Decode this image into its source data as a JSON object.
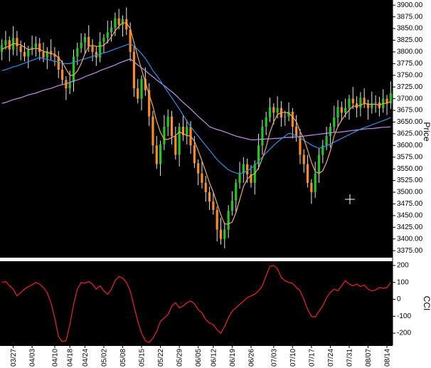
{
  "chart_data": [
    {
      "type": "candlestick",
      "y_label": "Price",
      "categories": [
        null,
        null,
        null,
        "03/27",
        null,
        null,
        null,
        null,
        "04/03",
        null,
        null,
        null,
        null,
        null,
        "04/10",
        null,
        null,
        null,
        "04/18",
        null,
        null,
        null,
        "04/24",
        null,
        null,
        null,
        null,
        "05/02",
        null,
        null,
        null,
        null,
        "05/08",
        null,
        null,
        null,
        null,
        "05/15",
        null,
        null,
        null,
        null,
        "05/22",
        null,
        null,
        null,
        null,
        "05/29",
        null,
        null,
        null,
        null,
        "06/05",
        null,
        null,
        null,
        "06/12",
        null,
        null,
        null,
        null,
        "06/19",
        null,
        null,
        null,
        null,
        "06/26",
        null,
        null,
        null,
        null,
        null,
        "07/03",
        null,
        null,
        null,
        null,
        "07/10",
        null,
        null,
        null,
        null,
        "07/17",
        null,
        null,
        null,
        null,
        "07/24",
        null,
        null,
        null,
        null,
        "07/31",
        null,
        null,
        null,
        null,
        "08/07",
        null,
        null,
        null,
        null,
        "08/14",
        null
      ],
      "open": [
        3800,
        3815,
        3825,
        3805,
        3830,
        3812,
        3800,
        3790,
        3805,
        3810,
        3818,
        3800,
        3788,
        3802,
        3795,
        3790,
        3762,
        3740,
        3722,
        3735,
        3790,
        3808,
        3820,
        3832,
        3812,
        3800,
        3788,
        3822,
        3830,
        3842,
        3852,
        3872,
        3858,
        3870,
        3848,
        3800,
        3722,
        3700,
        3742,
        3718,
        3662,
        3600,
        3560,
        3602,
        3640,
        3662,
        3620,
        3580,
        3640,
        3622,
        3640,
        3600,
        3562,
        3540,
        3520,
        3500,
        3480,
        3462,
        3420,
        3400,
        3420,
        3460,
        3482,
        3520,
        3540,
        3560,
        3538,
        3520,
        3560,
        3600,
        3640,
        3660,
        3682,
        3670,
        3680,
        3660,
        3662,
        3672,
        3640,
        3620,
        3580,
        3560,
        3520,
        3500,
        3540,
        3580,
        3600,
        3620,
        3640,
        3660,
        3682,
        3670,
        3680,
        3700,
        3690,
        3680,
        3702,
        3690,
        3680,
        3690,
        3692,
        3680,
        3700,
        3690
      ],
      "high": [
        3827,
        3845,
        3833,
        3855,
        3845,
        3824,
        3820,
        3813,
        3835,
        3833,
        3830,
        3820,
        3810,
        3827,
        3810,
        3802,
        3782,
        3748,
        3760,
        3805,
        3820,
        3840,
        3840,
        3857,
        3827,
        3812,
        3842,
        3838,
        3867,
        3867,
        3884,
        3892,
        3878,
        3895,
        3863,
        3812,
        3742,
        3750,
        3767,
        3733,
        3674,
        3620,
        3610,
        3665,
        3677,
        3674,
        3640,
        3648,
        3665,
        3655,
        3652,
        3620,
        3570,
        3565,
        3535,
        3512,
        3500,
        3470,
        3445,
        3435,
        3472,
        3502,
        3528,
        3565,
        3575,
        3572,
        3558,
        3568,
        3625,
        3655,
        3672,
        3702,
        3690,
        3705,
        3695,
        3674,
        3692,
        3680,
        3665,
        3635,
        3592,
        3580,
        3528,
        3565,
        3595,
        3612,
        3640,
        3648,
        3685,
        3697,
        3694,
        3700,
        3708,
        3725,
        3705,
        3714,
        3722,
        3698,
        3715,
        3707,
        3704,
        3720,
        3708,
        3737
      ],
      "low": [
        3782,
        3805,
        3780,
        3793,
        3792,
        3782,
        3780,
        3765,
        3793,
        3790,
        3782,
        3778,
        3763,
        3783,
        3770,
        3744,
        3730,
        3697,
        3710,
        3715,
        3772,
        3798,
        3795,
        3800,
        3780,
        3770,
        3778,
        3797,
        3818,
        3822,
        3834,
        3848,
        3833,
        3836,
        3780,
        3704,
        3690,
        3675,
        3706,
        3642,
        3582,
        3550,
        3535,
        3590,
        3620,
        3602,
        3570,
        3555,
        3610,
        3602,
        3582,
        3552,
        3515,
        3508,
        3480,
        3462,
        3452,
        3395,
        3388,
        3380,
        3402,
        3450,
        3457,
        3508,
        3520,
        3520,
        3510,
        3495,
        3548,
        3580,
        3622,
        3650,
        3645,
        3658,
        3640,
        3642,
        3652,
        3615,
        3608,
        3560,
        3542,
        3510,
        3475,
        3488,
        3520,
        3562,
        3590,
        3595,
        3628,
        3640,
        3652,
        3660,
        3655,
        3678,
        3660,
        3662,
        3680,
        3655,
        3668,
        3670,
        3662,
        3670,
        3665,
        3678
      ],
      "close": [
        3815,
        3825,
        3805,
        3830,
        3812,
        3800,
        3790,
        3805,
        3810,
        3818,
        3800,
        3788,
        3802,
        3795,
        3790,
        3762,
        3740,
        3722,
        3735,
        3790,
        3808,
        3820,
        3832,
        3812,
        3800,
        3788,
        3822,
        3830,
        3842,
        3852,
        3872,
        3858,
        3870,
        3848,
        3800,
        3722,
        3700,
        3742,
        3718,
        3662,
        3600,
        3560,
        3602,
        3640,
        3662,
        3620,
        3580,
        3640,
        3622,
        3640,
        3600,
        3562,
        3540,
        3520,
        3500,
        3480,
        3462,
        3420,
        3400,
        3420,
        3460,
        3482,
        3520,
        3540,
        3560,
        3538,
        3520,
        3560,
        3600,
        3640,
        3660,
        3682,
        3670,
        3680,
        3660,
        3662,
        3672,
        3640,
        3620,
        3580,
        3560,
        3520,
        3500,
        3540,
        3580,
        3600,
        3620,
        3640,
        3660,
        3682,
        3670,
        3680,
        3700,
        3690,
        3680,
        3702,
        3690,
        3680,
        3690,
        3692,
        3680,
        3700,
        3690,
        3712
      ],
      "up_color": "#1ec81e",
      "down_color": "#ff8a1e",
      "wick_color": "#e6e6e6",
      "series": [
        {
          "color": "#c58ee8",
          "values": [
            3690,
            3692,
            3695,
            3698,
            3700,
            3702,
            3705,
            3708,
            3710,
            3712,
            3715,
            3718,
            3720,
            3722,
            3725,
            3728,
            3730,
            3732,
            3735,
            3738,
            3740,
            3743,
            3747,
            3750,
            3753,
            3756,
            3760,
            3763,
            3766,
            3769,
            3772,
            3776,
            3779,
            3782,
            3785,
            3779,
            3772,
            3766,
            3760,
            3753,
            3747,
            3740,
            3734,
            3728,
            3721,
            3715,
            3708,
            3700,
            3692,
            3685,
            3678,
            3670,
            3662,
            3655,
            3648,
            3640,
            3637,
            3634,
            3632,
            3629,
            3626,
            3623,
            3620,
            3618,
            3616,
            3614,
            3612,
            3612,
            3613,
            3613,
            3614,
            3614,
            3615,
            3615,
            3616,
            3617,
            3617,
            3618,
            3618,
            3619,
            3620,
            3621,
            3622,
            3623,
            3624,
            3625,
            3626,
            3627,
            3628,
            3628,
            3629,
            3630,
            3631,
            3632,
            3633,
            3634,
            3635,
            3636,
            3636,
            3637,
            3638,
            3639,
            3639,
            3640
          ]
        },
        {
          "color": "#2a8ee8",
          "values": [
            3760,
            3762,
            3765,
            3768,
            3770,
            3773,
            3776,
            3779,
            3782,
            3785,
            3788,
            3786,
            3784,
            3782,
            3780,
            3778,
            3776,
            3775,
            3775,
            3778,
            3780,
            3783,
            3785,
            3788,
            3790,
            3793,
            3795,
            3798,
            3800,
            3803,
            3806,
            3809,
            3812,
            3815,
            3818,
            3812,
            3805,
            3796,
            3786,
            3774,
            3760,
            3750,
            3738,
            3726,
            3714,
            3702,
            3690,
            3678,
            3665,
            3652,
            3640,
            3630,
            3620,
            3610,
            3600,
            3590,
            3580,
            3570,
            3562,
            3555,
            3548,
            3544,
            3541,
            3540,
            3542,
            3546,
            3551,
            3557,
            3566,
            3575,
            3584,
            3592,
            3600,
            3607,
            3614,
            3620,
            3626,
            3624,
            3620,
            3616,
            3611,
            3606,
            3601,
            3597,
            3594,
            3596,
            3599,
            3603,
            3607,
            3611,
            3615,
            3619,
            3623,
            3627,
            3631,
            3635,
            3638,
            3641,
            3644,
            3647,
            3650,
            3653,
            3656,
            3660
          ]
        },
        {
          "color": "#f0a860",
          "values": [
            3805,
            3810,
            3812,
            3818,
            3817,
            3815,
            3810,
            3805,
            3806,
            3808,
            3806,
            3801,
            3799,
            3796,
            3795,
            3787,
            3778,
            3763,
            3750,
            3750,
            3759,
            3775,
            3796,
            3812,
            3814,
            3812,
            3812,
            3814,
            3822,
            3832,
            3845,
            3855,
            3862,
            3862,
            3850,
            3820,
            3790,
            3762,
            3736,
            3709,
            3684,
            3652,
            3628,
            3613,
            3613,
            3617,
            3621,
            3629,
            3625,
            3621,
            3620,
            3609,
            3589,
            3567,
            3544,
            3520,
            3500,
            3476,
            3452,
            3432,
            3432,
            3436,
            3456,
            3484,
            3512,
            3528,
            3536,
            3540,
            3552,
            3572,
            3596,
            3628,
            3650,
            3666,
            3670,
            3671,
            3669,
            3661,
            3651,
            3630,
            3614,
            3590,
            3564,
            3544,
            3540,
            3546,
            3564,
            3588,
            3620,
            3640,
            3654,
            3666,
            3676,
            3684,
            3684,
            3686,
            3690,
            3688,
            3688,
            3688,
            3686,
            3690,
            3690,
            3694
          ]
        }
      ],
      "ylim": [
        3360,
        3911
      ],
      "yticks": [
        {
          "value": 3375,
          "label": "3375.00"
        },
        {
          "value": 3400,
          "label": "3400.00"
        },
        {
          "value": 3425,
          "label": "3425.00"
        },
        {
          "value": 3450,
          "label": "3450.00"
        },
        {
          "value": 3475,
          "label": "3475.00"
        },
        {
          "value": 3500,
          "label": "3500.00"
        },
        {
          "value": 3525,
          "label": "3525.00"
        },
        {
          "value": 3550,
          "label": "3550.00"
        },
        {
          "value": 3575,
          "label": "3575.00"
        },
        {
          "value": 3600,
          "label": "3600.00"
        },
        {
          "value": 3625,
          "label": "3625.00"
        },
        {
          "value": 3650,
          "label": "3650.00"
        },
        {
          "value": 3675,
          "label": "3675.00"
        },
        {
          "value": 3700,
          "label": "3700.00"
        },
        {
          "value": 3725,
          "label": "3725.00"
        },
        {
          "value": 3750,
          "label": "3750.00"
        },
        {
          "value": 3775,
          "label": "3775.00"
        },
        {
          "value": 3800,
          "label": "3800.00"
        },
        {
          "value": 3825,
          "label": "3825.00"
        },
        {
          "value": 3850,
          "label": "3850.00"
        },
        {
          "value": 3875,
          "label": "3875.00"
        },
        {
          "value": 3900,
          "label": "3900.00"
        }
      ]
    },
    {
      "type": "line",
      "y_label": "CCI",
      "color": "#e02020",
      "values": [
        100,
        105,
        80,
        60,
        20,
        40,
        60,
        75,
        85,
        100,
        90,
        70,
        40,
        -20,
        -110,
        -220,
        -250,
        -245,
        -150,
        -30,
        60,
        100,
        95,
        105,
        90,
        60,
        80,
        50,
        30,
        60,
        110,
        135,
        125,
        100,
        50,
        -40,
        -130,
        -200,
        -245,
        -255,
        -230,
        -190,
        -130,
        -110,
        -90,
        -40,
        -20,
        -50,
        -40,
        -20,
        -10,
        -25,
        -60,
        -80,
        -120,
        -140,
        -150,
        -180,
        -200,
        -160,
        -110,
        -70,
        -50,
        -30,
        -10,
        10,
        20,
        30,
        50,
        80,
        140,
        195,
        200,
        180,
        130,
        110,
        100,
        95,
        70,
        50,
        0,
        -60,
        -100,
        -105,
        -70,
        -40,
        10,
        40,
        60,
        50,
        80,
        110,
        90,
        80,
        90,
        75,
        85,
        60,
        50,
        55,
        70,
        65,
        70,
        100
      ],
      "ylim": [
        -271,
        225
      ],
      "yticks": [
        200,
        100,
        0,
        -100,
        -200
      ]
    }
  ]
}
